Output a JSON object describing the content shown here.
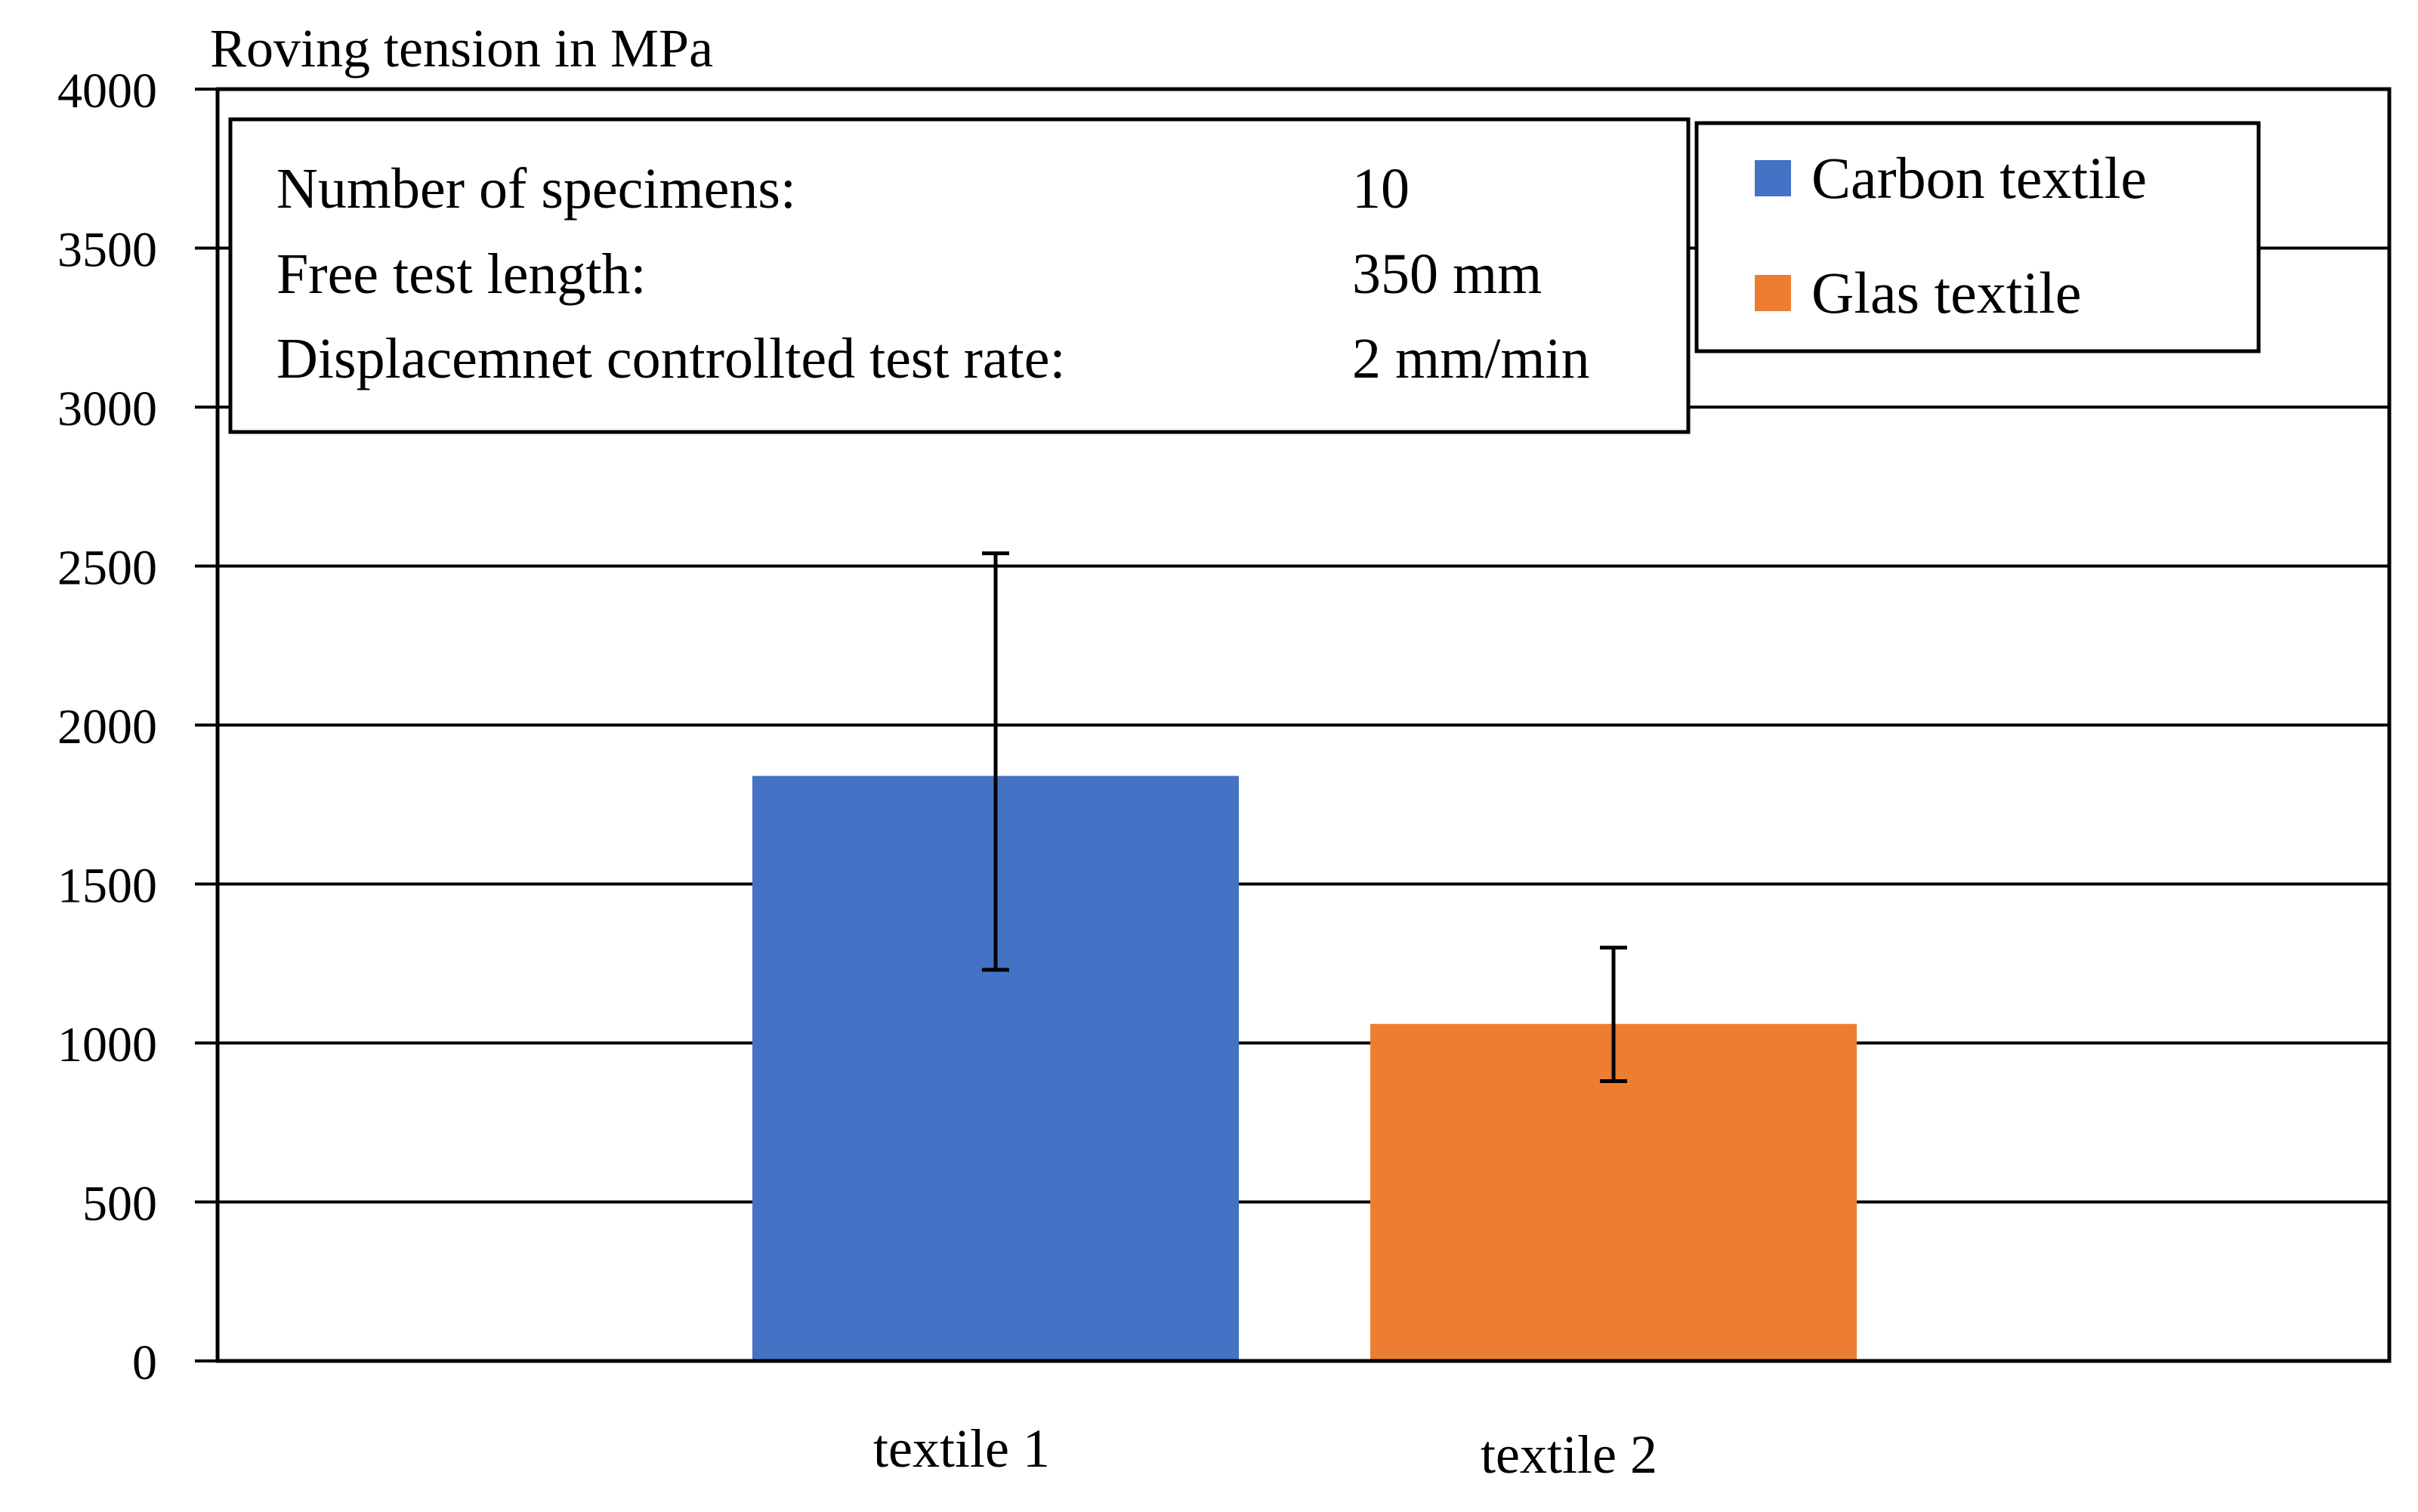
{
  "chart_data": {
    "type": "bar",
    "ylabel": "Roving tension in MPa",
    "ylim": [
      0,
      4000
    ],
    "ytick_step": 500,
    "yticks": [
      "0",
      "500",
      "1000",
      "1500",
      "2000",
      "2500",
      "3000",
      "3500",
      "4000"
    ],
    "grid": true,
    "categories": [
      "textile 1",
      "textile 2"
    ],
    "series": [
      {
        "name": "Carbon textile",
        "color": "#4472C4",
        "category_index": 0,
        "value": 1840,
        "error_low": 1230,
        "error_high": 2540
      },
      {
        "name": "Glas textile",
        "color": "#ED7D31",
        "category_index": 1,
        "value": 1060,
        "error_low": 880,
        "error_high": 1300
      }
    ],
    "legend_position": "top-right",
    "info_box": {
      "rows": [
        {
          "label": "Number of specimens:",
          "value": "10"
        },
        {
          "label": "Free test length:",
          "value": "350 mm"
        },
        {
          "label": "Displacemnet controllted test rate:",
          "value": "2 mm/min"
        }
      ]
    }
  }
}
